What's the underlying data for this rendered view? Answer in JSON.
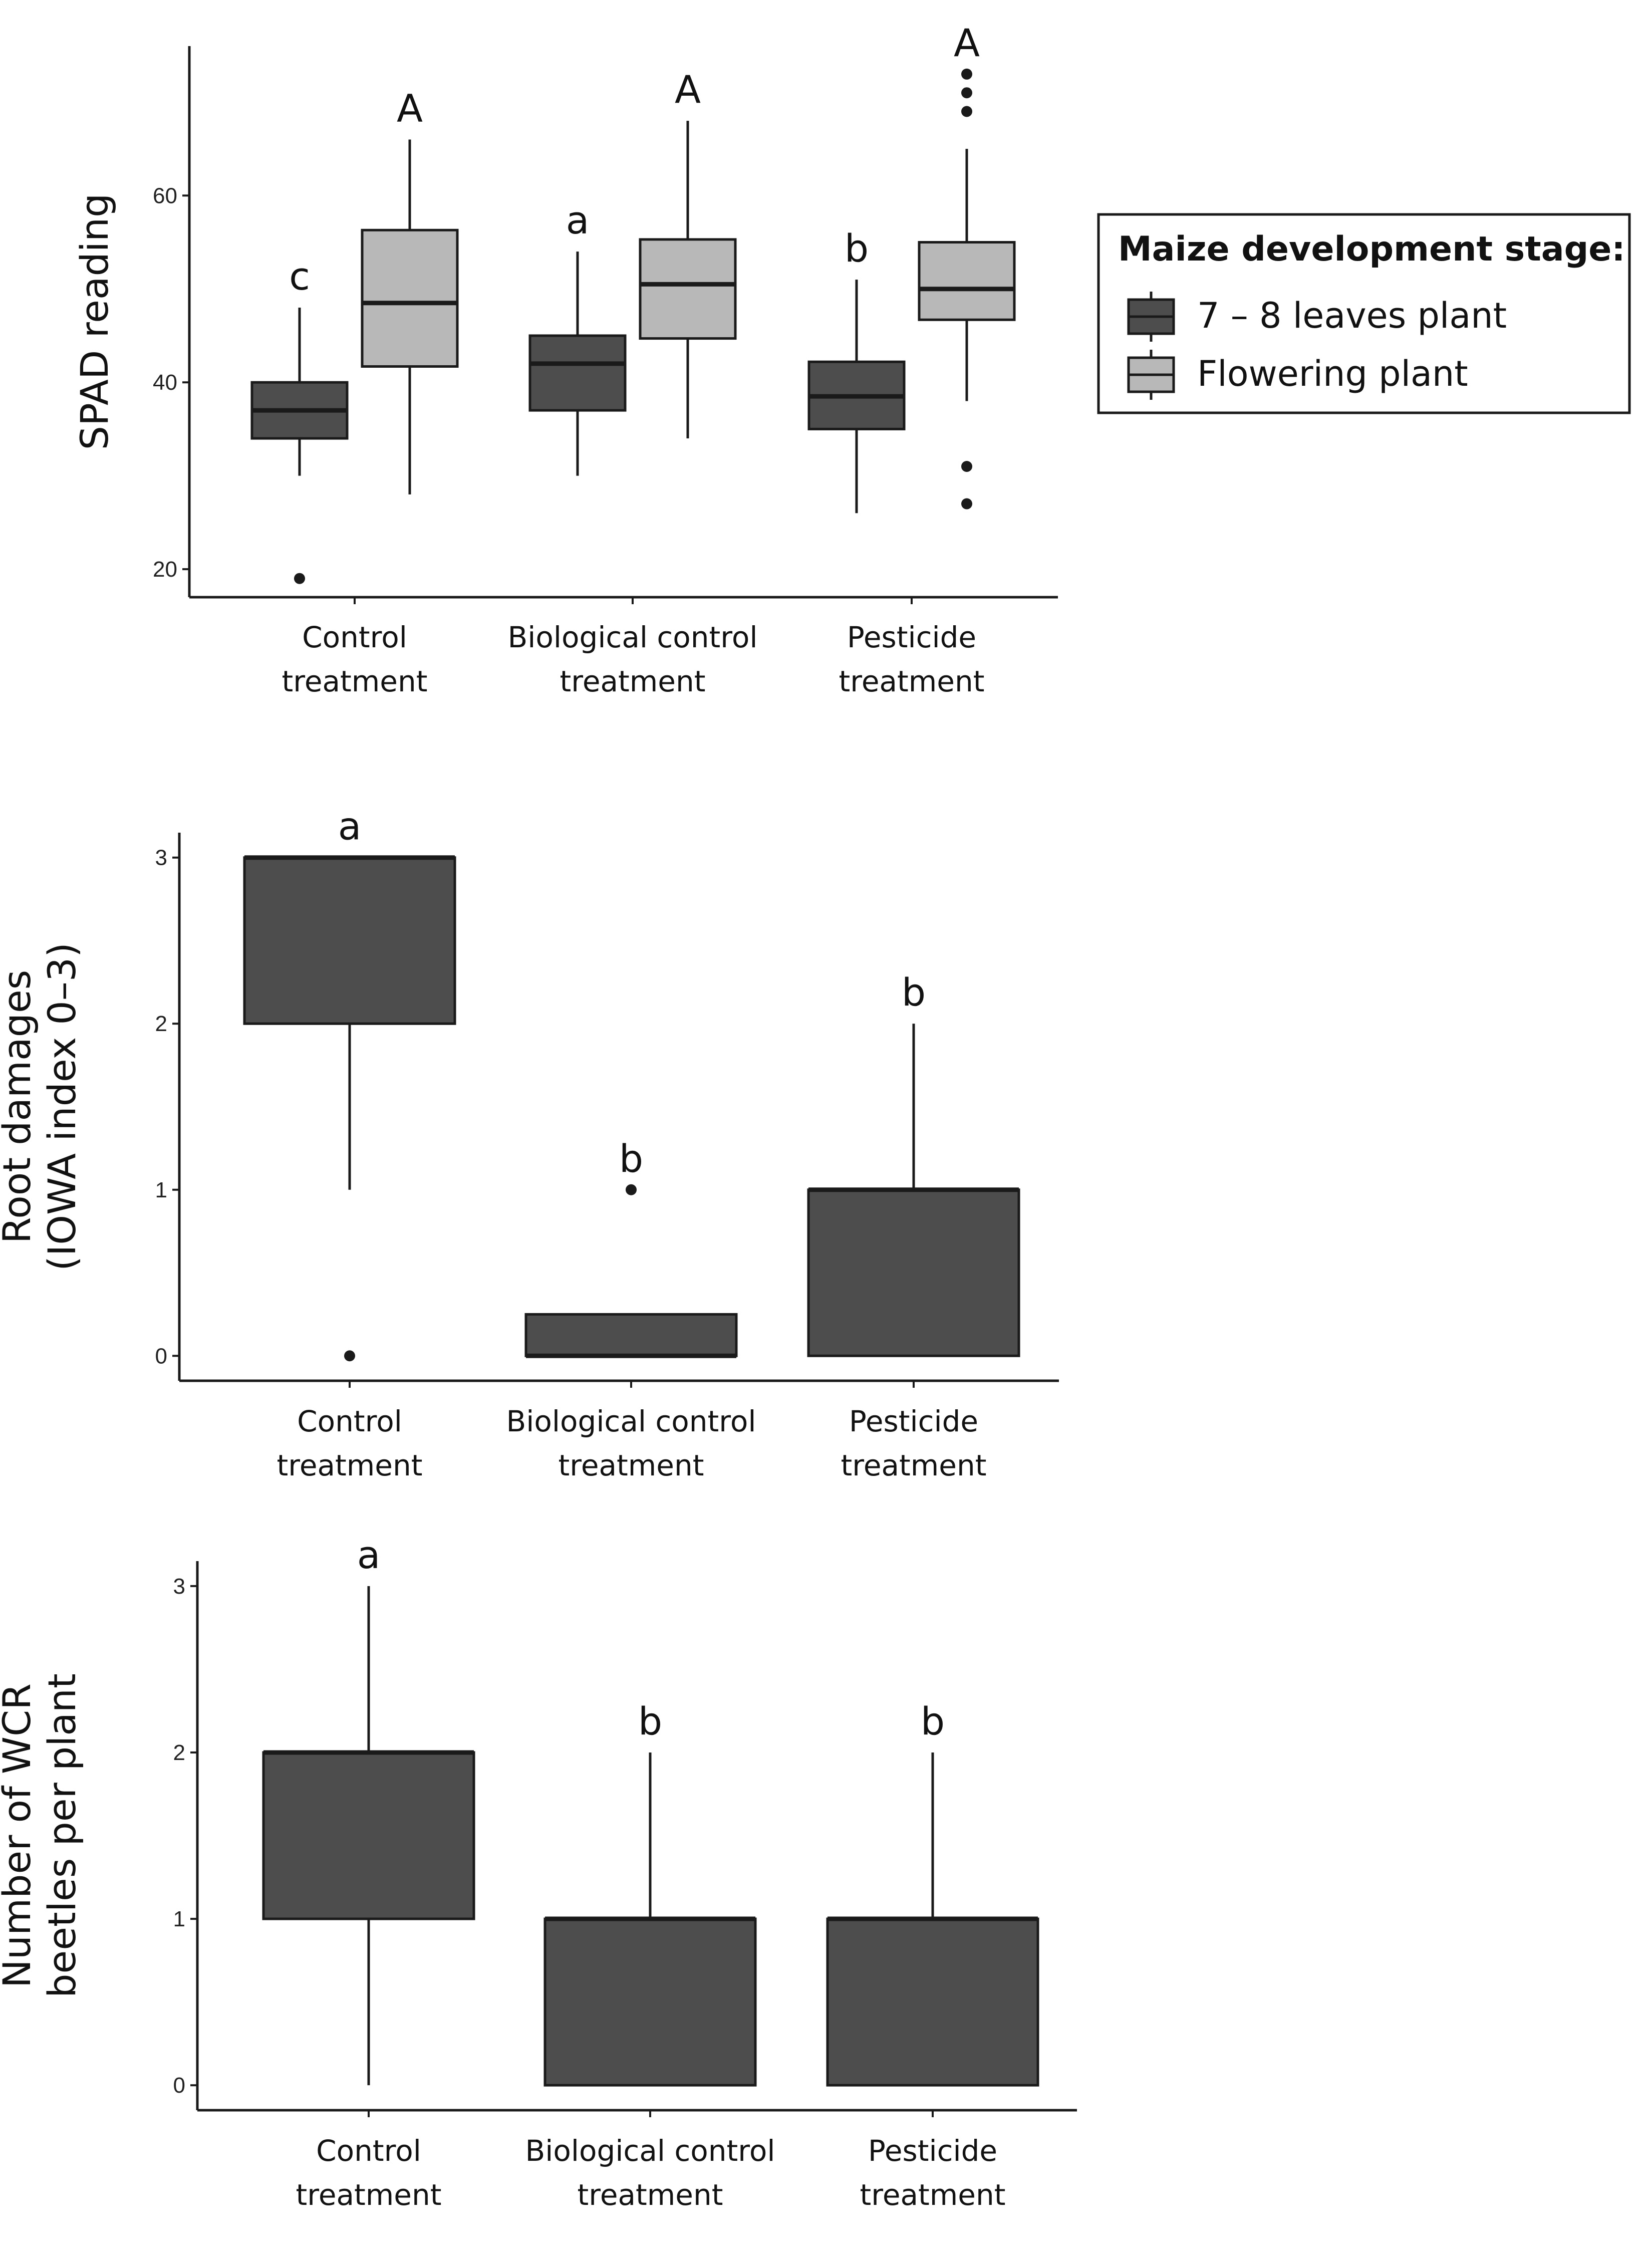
{
  "colors": {
    "dark": "#4d4d4d",
    "light": "#b8b8b8",
    "line": "#1a1a1a"
  },
  "legend": {
    "title": "Maize development stage:",
    "items": [
      {
        "label": "7 – 8 leaves plant",
        "color": "#4d4d4d"
      },
      {
        "label": "Flowering plant",
        "color": "#b8b8b8"
      }
    ]
  },
  "chart_data": [
    {
      "type": "box",
      "ylabel": [
        "SPAD reading"
      ],
      "ylim": [
        17,
        76
      ],
      "yticks": [
        20,
        40,
        60
      ],
      "categories": [
        [
          "Control",
          "treatment"
        ],
        [
          "Biological control",
          "treatment"
        ],
        [
          "Pesticide",
          "treatment"
        ]
      ],
      "series": [
        {
          "name": "7 – 8 leaves plant",
          "color": "#4d4d4d",
          "boxes": [
            {
              "category": 0,
              "whisker_low": 30,
              "q1": 34,
              "median": 37,
              "q3": 40,
              "whisker_high": 48,
              "outliers": [
                19
              ],
              "letter": "c"
            },
            {
              "category": 1,
              "whisker_low": 30,
              "q1": 37,
              "median": 42,
              "q3": 45,
              "whisker_high": 54,
              "outliers": [],
              "letter": "a"
            },
            {
              "category": 2,
              "whisker_low": 26,
              "q1": 35,
              "median": 38.5,
              "q3": 42.2,
              "whisker_high": 51,
              "outliers": [],
              "letter": "b"
            }
          ]
        },
        {
          "name": "Flowering plant",
          "color": "#b8b8b8",
          "boxes": [
            {
              "category": 0,
              "whisker_low": 28,
              "q1": 41.7,
              "median": 48.5,
              "q3": 56.3,
              "whisker_high": 66,
              "outliers": [],
              "letter": "A"
            },
            {
              "category": 1,
              "whisker_low": 34,
              "q1": 44.7,
              "median": 50.5,
              "q3": 55.3,
              "whisker_high": 68,
              "outliers": [],
              "letter": "A"
            },
            {
              "category": 2,
              "whisker_low": 38,
              "q1": 46.7,
              "median": 50,
              "q3": 55,
              "whisker_high": 65,
              "outliers": [
                27,
                31,
                69,
                71,
                73
              ],
              "letter": "A"
            }
          ]
        }
      ]
    },
    {
      "type": "box",
      "ylabel": [
        "Root damages",
        "(IOWA index 0–3)"
      ],
      "ylim": [
        -0.15,
        3.15
      ],
      "yticks": [
        0,
        1,
        2,
        3
      ],
      "categories": [
        [
          "Control",
          "treatment"
        ],
        [
          "Biological control",
          "treatment"
        ],
        [
          "Pesticide",
          "treatment"
        ]
      ],
      "series": [
        {
          "name": "7 – 8 leaves plant",
          "color": "#4d4d4d",
          "boxes": [
            {
              "category": 0,
              "whisker_low": 1,
              "q1": 2,
              "median": 3,
              "q3": 3,
              "whisker_high": 3,
              "outliers": [
                0
              ],
              "letter": "a"
            },
            {
              "category": 1,
              "whisker_low": 0,
              "q1": 0,
              "median": 0,
              "q3": 0.25,
              "whisker_high": 0.25,
              "outliers": [
                1
              ],
              "letter": "b"
            },
            {
              "category": 2,
              "whisker_low": 0,
              "q1": 0,
              "median": 1,
              "q3": 1,
              "whisker_high": 2,
              "outliers": [],
              "letter": "b"
            }
          ]
        }
      ]
    },
    {
      "type": "box",
      "ylabel": [
        "Number of WCR",
        "beetles per plant"
      ],
      "ylim": [
        -0.15,
        3.15
      ],
      "yticks": [
        0,
        1,
        2,
        3
      ],
      "categories": [
        [
          "Control",
          "treatment"
        ],
        [
          "Biological control",
          "treatment"
        ],
        [
          "Pesticide",
          "treatment"
        ]
      ],
      "series": [
        {
          "name": "7 – 8 leaves plant",
          "color": "#4d4d4d",
          "boxes": [
            {
              "category": 0,
              "whisker_low": 0,
              "q1": 1,
              "median": 2,
              "q3": 2,
              "whisker_high": 3,
              "outliers": [],
              "letter": "a"
            },
            {
              "category": 1,
              "whisker_low": 0,
              "q1": 0,
              "median": 1,
              "q3": 1,
              "whisker_high": 2,
              "outliers": [],
              "letter": "b"
            },
            {
              "category": 2,
              "whisker_low": 0,
              "q1": 0,
              "median": 1,
              "q3": 1,
              "whisker_high": 2,
              "outliers": [],
              "letter": "b"
            }
          ]
        }
      ]
    }
  ]
}
